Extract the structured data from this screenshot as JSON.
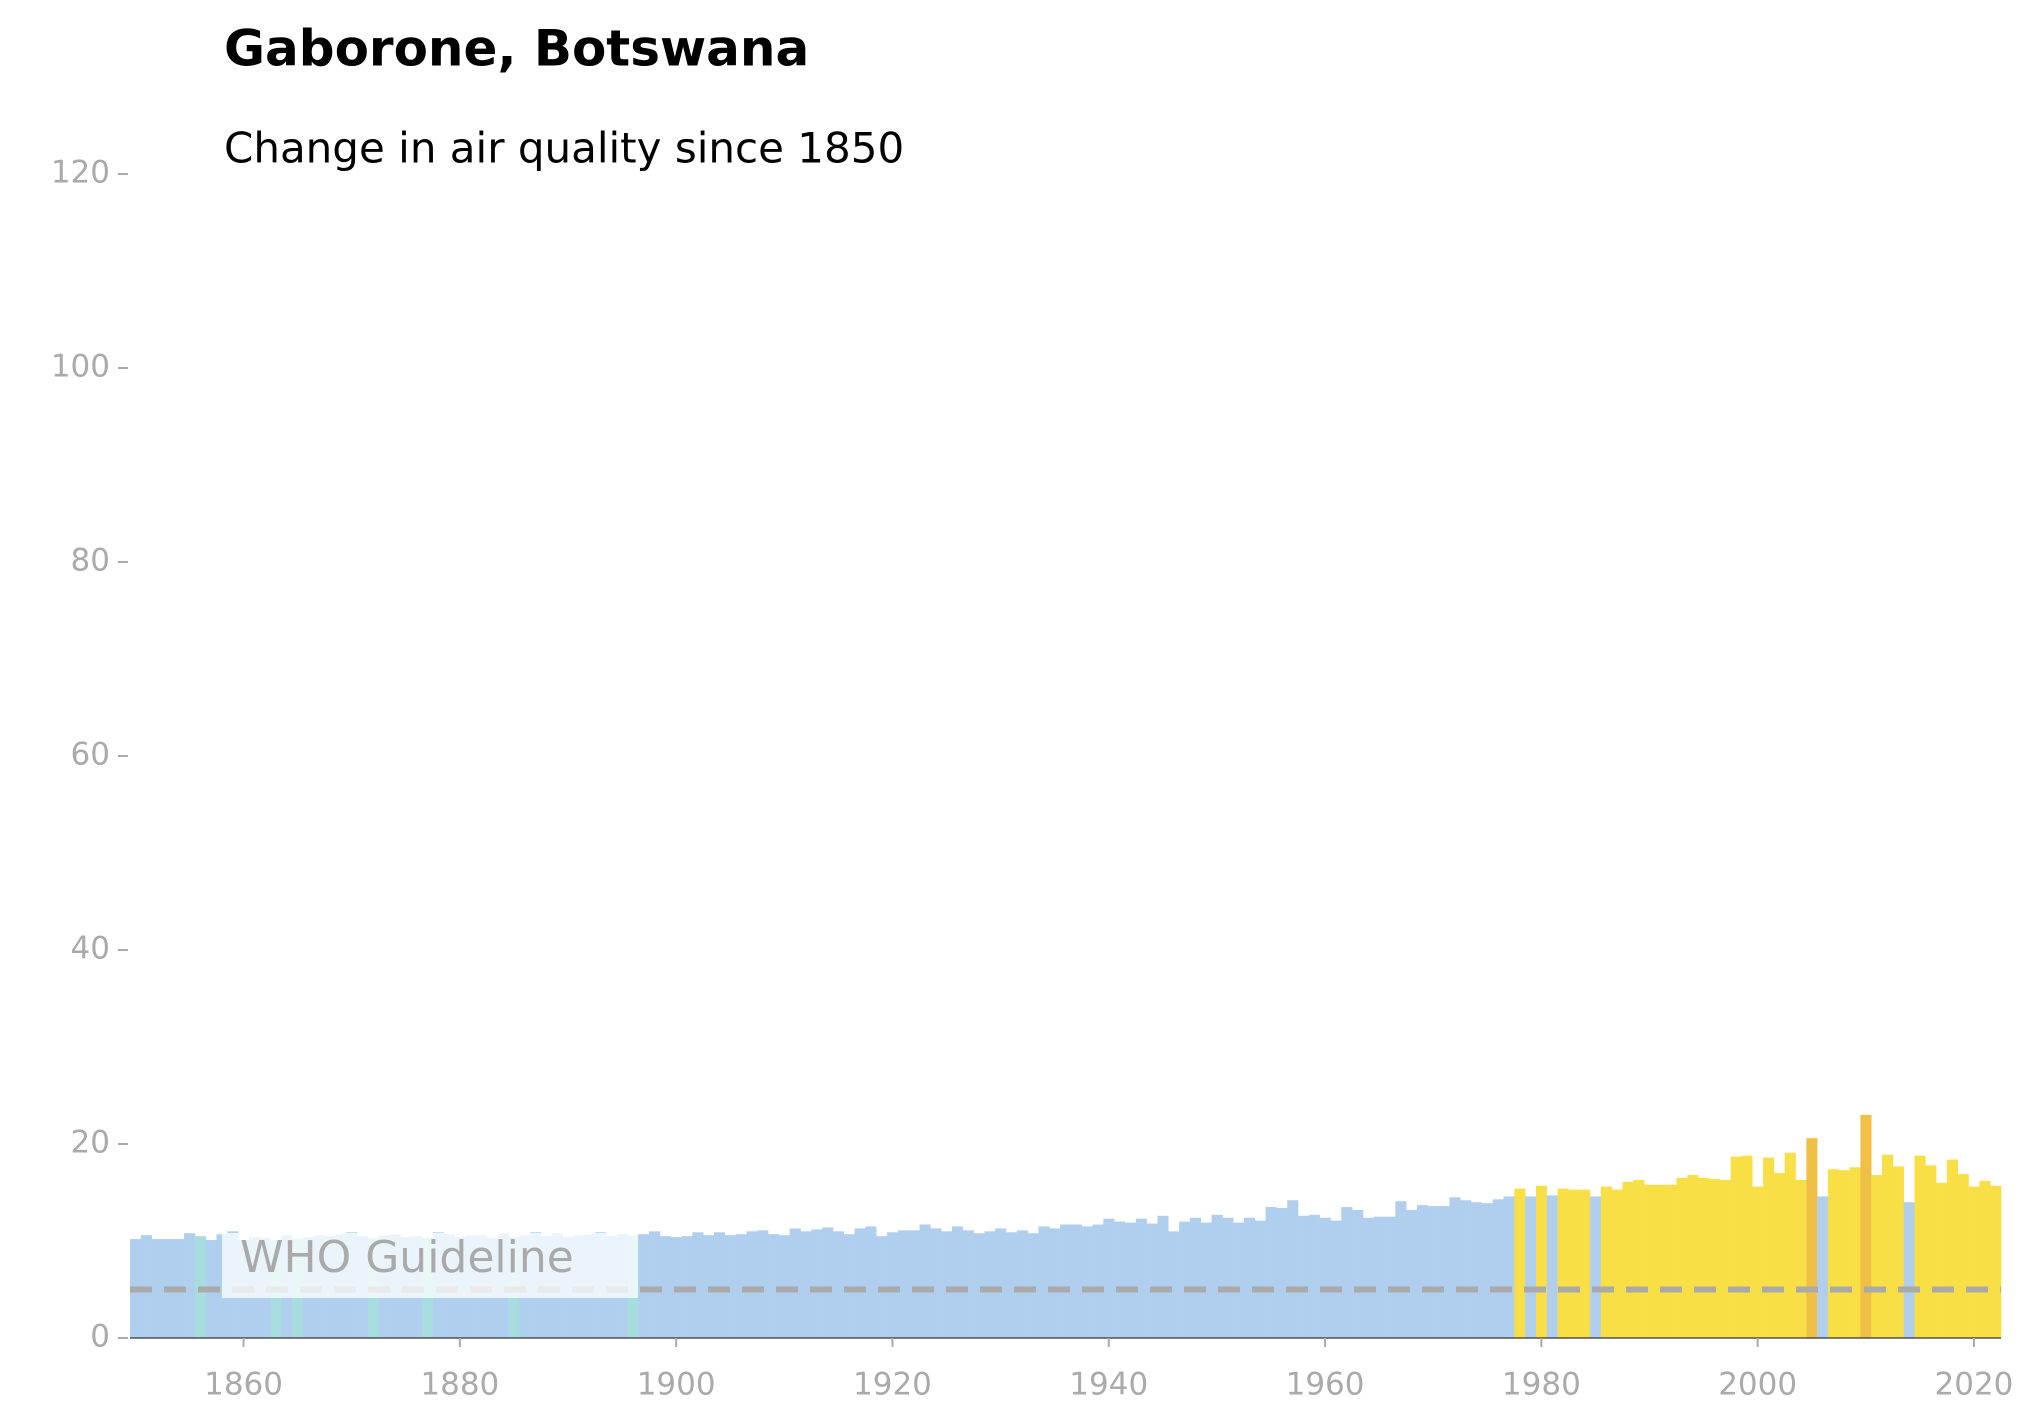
{
  "chart_data": {
    "type": "bar",
    "title": "Gaborone, Botswana",
    "subtitle": "Change in air quality since 1850",
    "x": [
      1850,
      1851,
      1852,
      1853,
      1854,
      1855,
      1856,
      1857,
      1858,
      1859,
      1860,
      1861,
      1862,
      1863,
      1864,
      1865,
      1866,
      1867,
      1868,
      1869,
      1870,
      1871,
      1872,
      1873,
      1874,
      1875,
      1876,
      1877,
      1878,
      1879,
      1880,
      1881,
      1882,
      1883,
      1884,
      1885,
      1886,
      1887,
      1888,
      1889,
      1890,
      1891,
      1892,
      1893,
      1894,
      1895,
      1896,
      1897,
      1898,
      1899,
      1900,
      1901,
      1902,
      1903,
      1904,
      1905,
      1906,
      1907,
      1908,
      1909,
      1910,
      1911,
      1912,
      1913,
      1914,
      1915,
      1916,
      1917,
      1918,
      1919,
      1920,
      1921,
      1922,
      1923,
      1924,
      1925,
      1926,
      1927,
      1928,
      1929,
      1930,
      1931,
      1932,
      1933,
      1934,
      1935,
      1936,
      1937,
      1938,
      1939,
      1940,
      1941,
      1942,
      1943,
      1944,
      1945,
      1946,
      1947,
      1948,
      1949,
      1950,
      1951,
      1952,
      1953,
      1954,
      1955,
      1956,
      1957,
      1958,
      1959,
      1960,
      1961,
      1962,
      1963,
      1964,
      1965,
      1966,
      1967,
      1968,
      1969,
      1970,
      1971,
      1972,
      1973,
      1974,
      1975,
      1976,
      1977,
      1978,
      1979,
      1980,
      1981,
      1982,
      1983,
      1984,
      1985,
      1986,
      1987,
      1988,
      1989,
      1990,
      1991,
      1992,
      1993,
      1994,
      1995,
      1996,
      1997,
      1998,
      1999,
      2000,
      2001,
      2002,
      2003,
      2004,
      2005,
      2006,
      2007,
      2008,
      2009,
      2010,
      2011,
      2012,
      2013,
      2014,
      2015,
      2016,
      2017,
      2018,
      2019,
      2020,
      2021,
      2022
    ],
    "values": [
      10.2,
      10.6,
      10.2,
      10.2,
      10.2,
      10.8,
      10.5,
      10.1,
      10.7,
      11.0,
      10.1,
      10.4,
      10.3,
      10.1,
      10.6,
      10.2,
      10.4,
      10.6,
      10.5,
      10.7,
      10.9,
      10.5,
      10.3,
      10.6,
      10.7,
      10.4,
      10.5,
      10.3,
      10.9,
      10.7,
      10.4,
      10.6,
      10.6,
      10.3,
      10.8,
      10.4,
      10.6,
      10.9,
      10.5,
      10.8,
      10.4,
      10.6,
      10.7,
      10.9,
      10.5,
      10.7,
      10.6,
      10.7,
      11.0,
      10.5,
      10.4,
      10.5,
      10.9,
      10.6,
      10.9,
      10.6,
      10.7,
      11.0,
      11.1,
      10.7,
      10.6,
      11.3,
      11.0,
      11.2,
      11.4,
      11.0,
      10.7,
      11.3,
      11.5,
      10.5,
      10.9,
      11.1,
      11.1,
      11.7,
      11.3,
      11.0,
      11.5,
      11.1,
      10.8,
      11.0,
      11.3,
      10.9,
      11.1,
      10.8,
      11.5,
      11.3,
      11.7,
      11.7,
      11.5,
      11.7,
      12.3,
      12.0,
      11.9,
      12.3,
      11.8,
      12.6,
      11.0,
      12.0,
      12.4,
      11.9,
      12.7,
      12.4,
      11.9,
      12.4,
      12.1,
      13.5,
      13.4,
      14.2,
      12.6,
      12.7,
      12.4,
      12.1,
      13.5,
      13.2,
      12.4,
      12.5,
      12.5,
      14.1,
      13.2,
      13.7,
      13.6,
      13.6,
      14.5,
      14.2,
      14.0,
      13.9,
      14.3,
      14.6,
      15.4,
      14.6,
      15.7,
      14.7,
      15.4,
      15.3,
      15.3,
      14.6,
      15.6,
      15.3,
      16.1,
      16.3,
      15.8,
      15.8,
      15.8,
      16.5,
      16.8,
      16.5,
      16.4,
      16.3,
      18.7,
      18.8,
      15.6,
      18.6,
      17.0,
      19.1,
      16.3,
      20.6,
      14.6,
      17.4,
      17.3,
      17.6,
      23.0,
      16.8,
      18.9,
      17.7,
      14.0,
      18.8,
      17.8,
      16.0,
      18.4,
      16.9,
      15.6,
      16.2,
      15.7
    ],
    "colors": [
      "#b0cfee",
      "#b0cfee",
      "#b0cfee",
      "#b0cfee",
      "#b0cfee",
      "#b0cfee",
      "#a8dde0",
      "#b0cfee",
      "#b0cfee",
      "#b0cfee",
      "#b0cfee",
      "#b0cfee",
      "#b0cfee",
      "#a8dde0",
      "#b0cfee",
      "#a8dde0",
      "#b0cfee",
      "#b0cfee",
      "#b0cfee",
      "#b0cfee",
      "#b0cfee",
      "#b0cfee",
      "#a8dde0",
      "#b0cfee",
      "#b0cfee",
      "#b0cfee",
      "#b0cfee",
      "#a8dde0",
      "#b0cfee",
      "#b0cfee",
      "#b0cfee",
      "#b0cfee",
      "#b0cfee",
      "#b0cfee",
      "#b0cfee",
      "#a8dde0",
      "#b0cfee",
      "#b0cfee",
      "#b0cfee",
      "#b0cfee",
      "#b0cfee",
      "#b0cfee",
      "#b0cfee",
      "#b0cfee",
      "#b0cfee",
      "#b0cfee",
      "#a8dde0",
      "#b0cfee",
      "#b0cfee",
      "#b0cfee",
      "#b0cfee",
      "#b0cfee",
      "#b0cfee",
      "#b0cfee",
      "#b0cfee",
      "#b0cfee",
      "#b0cfee",
      "#b0cfee",
      "#b0cfee",
      "#b0cfee",
      "#b0cfee",
      "#b0cfee",
      "#b0cfee",
      "#b0cfee",
      "#b0cfee",
      "#b0cfee",
      "#b0cfee",
      "#b0cfee",
      "#b0cfee",
      "#b0cfee",
      "#b0cfee",
      "#b0cfee",
      "#b0cfee",
      "#b0cfee",
      "#b0cfee",
      "#b0cfee",
      "#b0cfee",
      "#b0cfee",
      "#b0cfee",
      "#b0cfee",
      "#b0cfee",
      "#b0cfee",
      "#b0cfee",
      "#b0cfee",
      "#b0cfee",
      "#b0cfee",
      "#b0cfee",
      "#b0cfee",
      "#b0cfee",
      "#b0cfee",
      "#b0cfee",
      "#b0cfee",
      "#b0cfee",
      "#b0cfee",
      "#b0cfee",
      "#b0cfee",
      "#b0cfee",
      "#b0cfee",
      "#b0cfee",
      "#b0cfee",
      "#b0cfee",
      "#b0cfee",
      "#b0cfee",
      "#b0cfee",
      "#b0cfee",
      "#b0cfee",
      "#b0cfee",
      "#b0cfee",
      "#b0cfee",
      "#b0cfee",
      "#b0cfee",
      "#b0cfee",
      "#b0cfee",
      "#b0cfee",
      "#b0cfee",
      "#b0cfee",
      "#b0cfee",
      "#b0cfee",
      "#b0cfee",
      "#b0cfee",
      "#b0cfee",
      "#b0cfee",
      "#b0cfee",
      "#b0cfee",
      "#b0cfee",
      "#b0cfee",
      "#b0cfee",
      "#b0cfee",
      "#f7df45",
      "#b0cfee",
      "#f7df45",
      "#b0cfee",
      "#f7df45",
      "#f7df45",
      "#f7df45",
      "#b0cfee",
      "#f7df45",
      "#f7df45",
      "#f7df45",
      "#f7df45",
      "#f7df45",
      "#f7df45",
      "#f7df45",
      "#f7df45",
      "#f7df45",
      "#f7df45",
      "#f7df45",
      "#f7df45",
      "#f7df45",
      "#f7df45",
      "#f7df45",
      "#f7df45",
      "#f7df45",
      "#f7df45",
      "#f7df45",
      "#f0c046",
      "#b0cfee",
      "#f7df45",
      "#f7df45",
      "#f7df45",
      "#f0c046",
      "#f7df45",
      "#f7df45",
      "#f7df45",
      "#b0cfee",
      "#f7df45",
      "#f7df45",
      "#f7df45",
      "#f7df45",
      "#f7df45",
      "#f7df45",
      "#f7df45",
      "#f7df45"
    ],
    "xlim": [
      1849.5,
      2022.5
    ],
    "xticks": [
      1860,
      1880,
      1900,
      1920,
      1940,
      1960,
      1980,
      2000,
      2020
    ],
    "ylim": [
      0,
      120
    ],
    "yticks": [
      0,
      20,
      40,
      60,
      80,
      100,
      120
    ],
    "guideline": {
      "value": 5,
      "label": "WHO Guideline",
      "color": "#aaaaaa"
    }
  }
}
